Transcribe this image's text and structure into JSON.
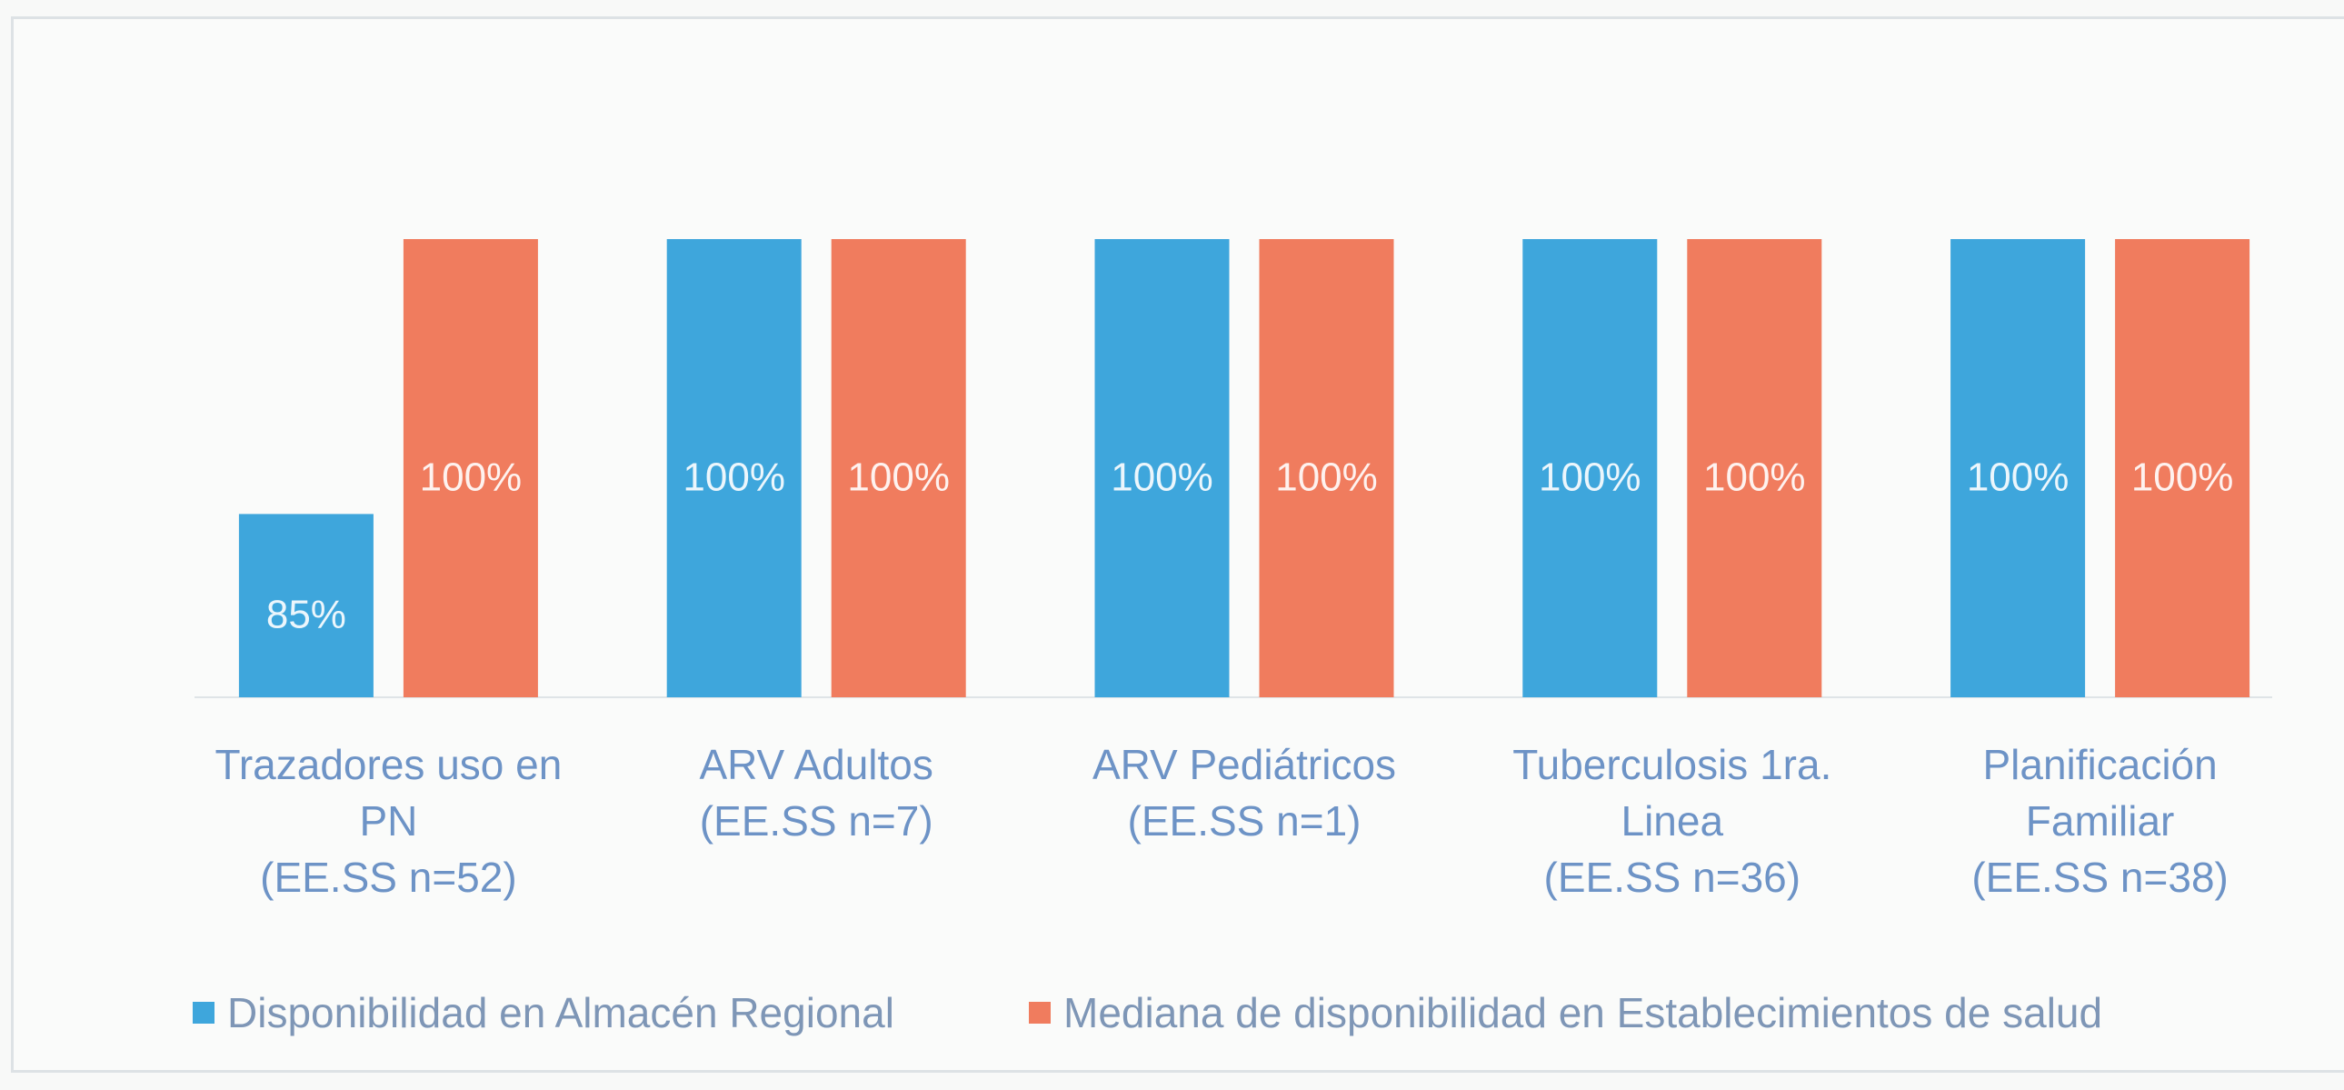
{
  "chart_data": {
    "type": "bar",
    "categories": [
      "Trazadores uso en\nPN\n(EE.SS n=52)",
      "ARV Adultos\n(EE.SS n=7)",
      "ARV Pediátricos\n(EE.SS n=1)",
      "Tuberculosis 1ra.\nLinea\n(EE.SS n=36)",
      "Planificación\nFamiliar\n(EE.SS n=38)"
    ],
    "series": [
      {
        "name": "Disponibilidad en Almacén Regional",
        "values": [
          85,
          100,
          100,
          100,
          100
        ],
        "labels": [
          "85%",
          "100%",
          "100%",
          "100%",
          "100%"
        ],
        "color": "#3ea6dc"
      },
      {
        "name": "Mediana de disponibilidad en Establecimientos de salud",
        "values": [
          100,
          100,
          100,
          100,
          100
        ],
        "labels": [
          "100%",
          "100%",
          "100%",
          "100%",
          "100%"
        ],
        "color": "#f07c5e"
      }
    ],
    "ylim": [
      75,
      100
    ],
    "grid": false,
    "legend_position": "bottom"
  }
}
